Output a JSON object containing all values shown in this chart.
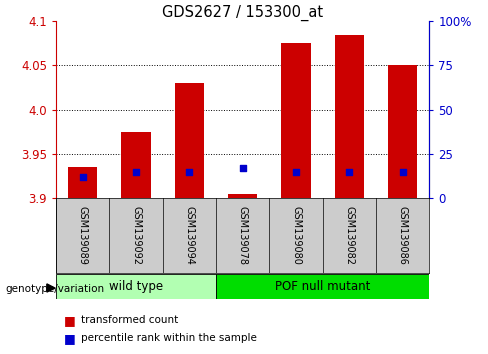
{
  "title": "GDS2627 / 153300_at",
  "samples": [
    "GSM139089",
    "GSM139092",
    "GSM139094",
    "GSM139078",
    "GSM139080",
    "GSM139082",
    "GSM139086"
  ],
  "transformed_counts": [
    3.935,
    3.975,
    4.03,
    3.905,
    4.075,
    4.085,
    4.05
  ],
  "percentile_ranks": [
    12,
    15,
    15,
    17,
    15,
    15,
    15
  ],
  "ylim_left": [
    3.9,
    4.1
  ],
  "ylim_right": [
    0,
    100
  ],
  "yticks_left": [
    3.9,
    3.95,
    4.0,
    4.05,
    4.1
  ],
  "yticks_right": [
    0,
    25,
    50,
    75,
    100
  ],
  "bar_color": "#cc0000",
  "percentile_color": "#0000cc",
  "bar_bottom": 3.9,
  "groups": [
    {
      "label": "wild type",
      "start": 0,
      "end": 3,
      "color": "#b2ffb2"
    },
    {
      "label": "POF null mutant",
      "start": 3,
      "end": 7,
      "color": "#00dd00"
    }
  ],
  "group_label": "genotype/variation",
  "legend_bar_label": "transformed count",
  "legend_pct_label": "percentile rank within the sample",
  "left_tick_color": "#cc0000",
  "right_tick_color": "#0000cc",
  "bar_width": 0.55,
  "figure_bg": "#ffffff",
  "axes_bg": "#ffffff",
  "grid_yticks": [
    3.95,
    4.0,
    4.05
  ],
  "label_area_bg": "#cccccc"
}
